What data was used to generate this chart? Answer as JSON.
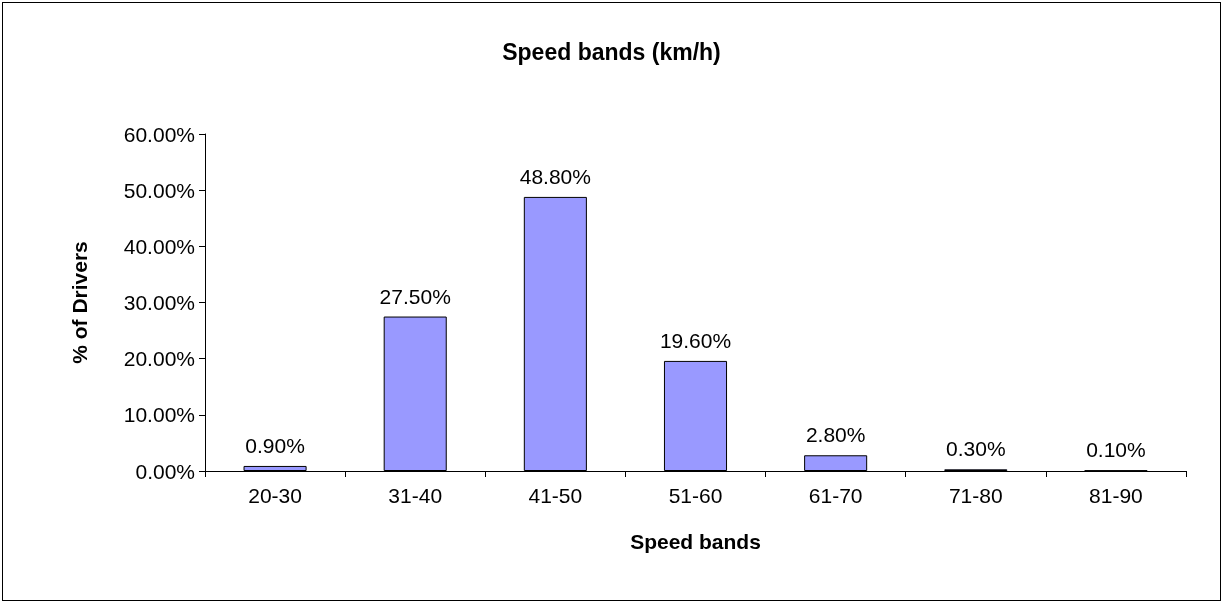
{
  "chart_data": {
    "type": "bar",
    "title": "Speed bands (km/h)",
    "xlabel": "Speed bands",
    "ylabel": "% of Drivers",
    "categories": [
      "20-30",
      "31-40",
      "41-50",
      "51-60",
      "61-70",
      "71-80",
      "81-90"
    ],
    "values": [
      0.9,
      27.5,
      48.8,
      19.6,
      2.8,
      0.3,
      0.1
    ],
    "value_labels": [
      "0.90%",
      "27.50%",
      "48.80%",
      "19.60%",
      "2.80%",
      "0.30%",
      "0.10%"
    ],
    "color": "#9999ff",
    "ylim": [
      0,
      60
    ],
    "yticks": [
      {
        "value": 0,
        "label": "0.00%"
      },
      {
        "value": 10,
        "label": "10.00%"
      },
      {
        "value": 20,
        "label": "20.00%"
      },
      {
        "value": 30,
        "label": "30.00%"
      },
      {
        "value": 40,
        "label": "40.00%"
      },
      {
        "value": 50,
        "label": "50.00%"
      },
      {
        "value": 60,
        "label": "60.00%"
      }
    ],
    "grid": false
  }
}
